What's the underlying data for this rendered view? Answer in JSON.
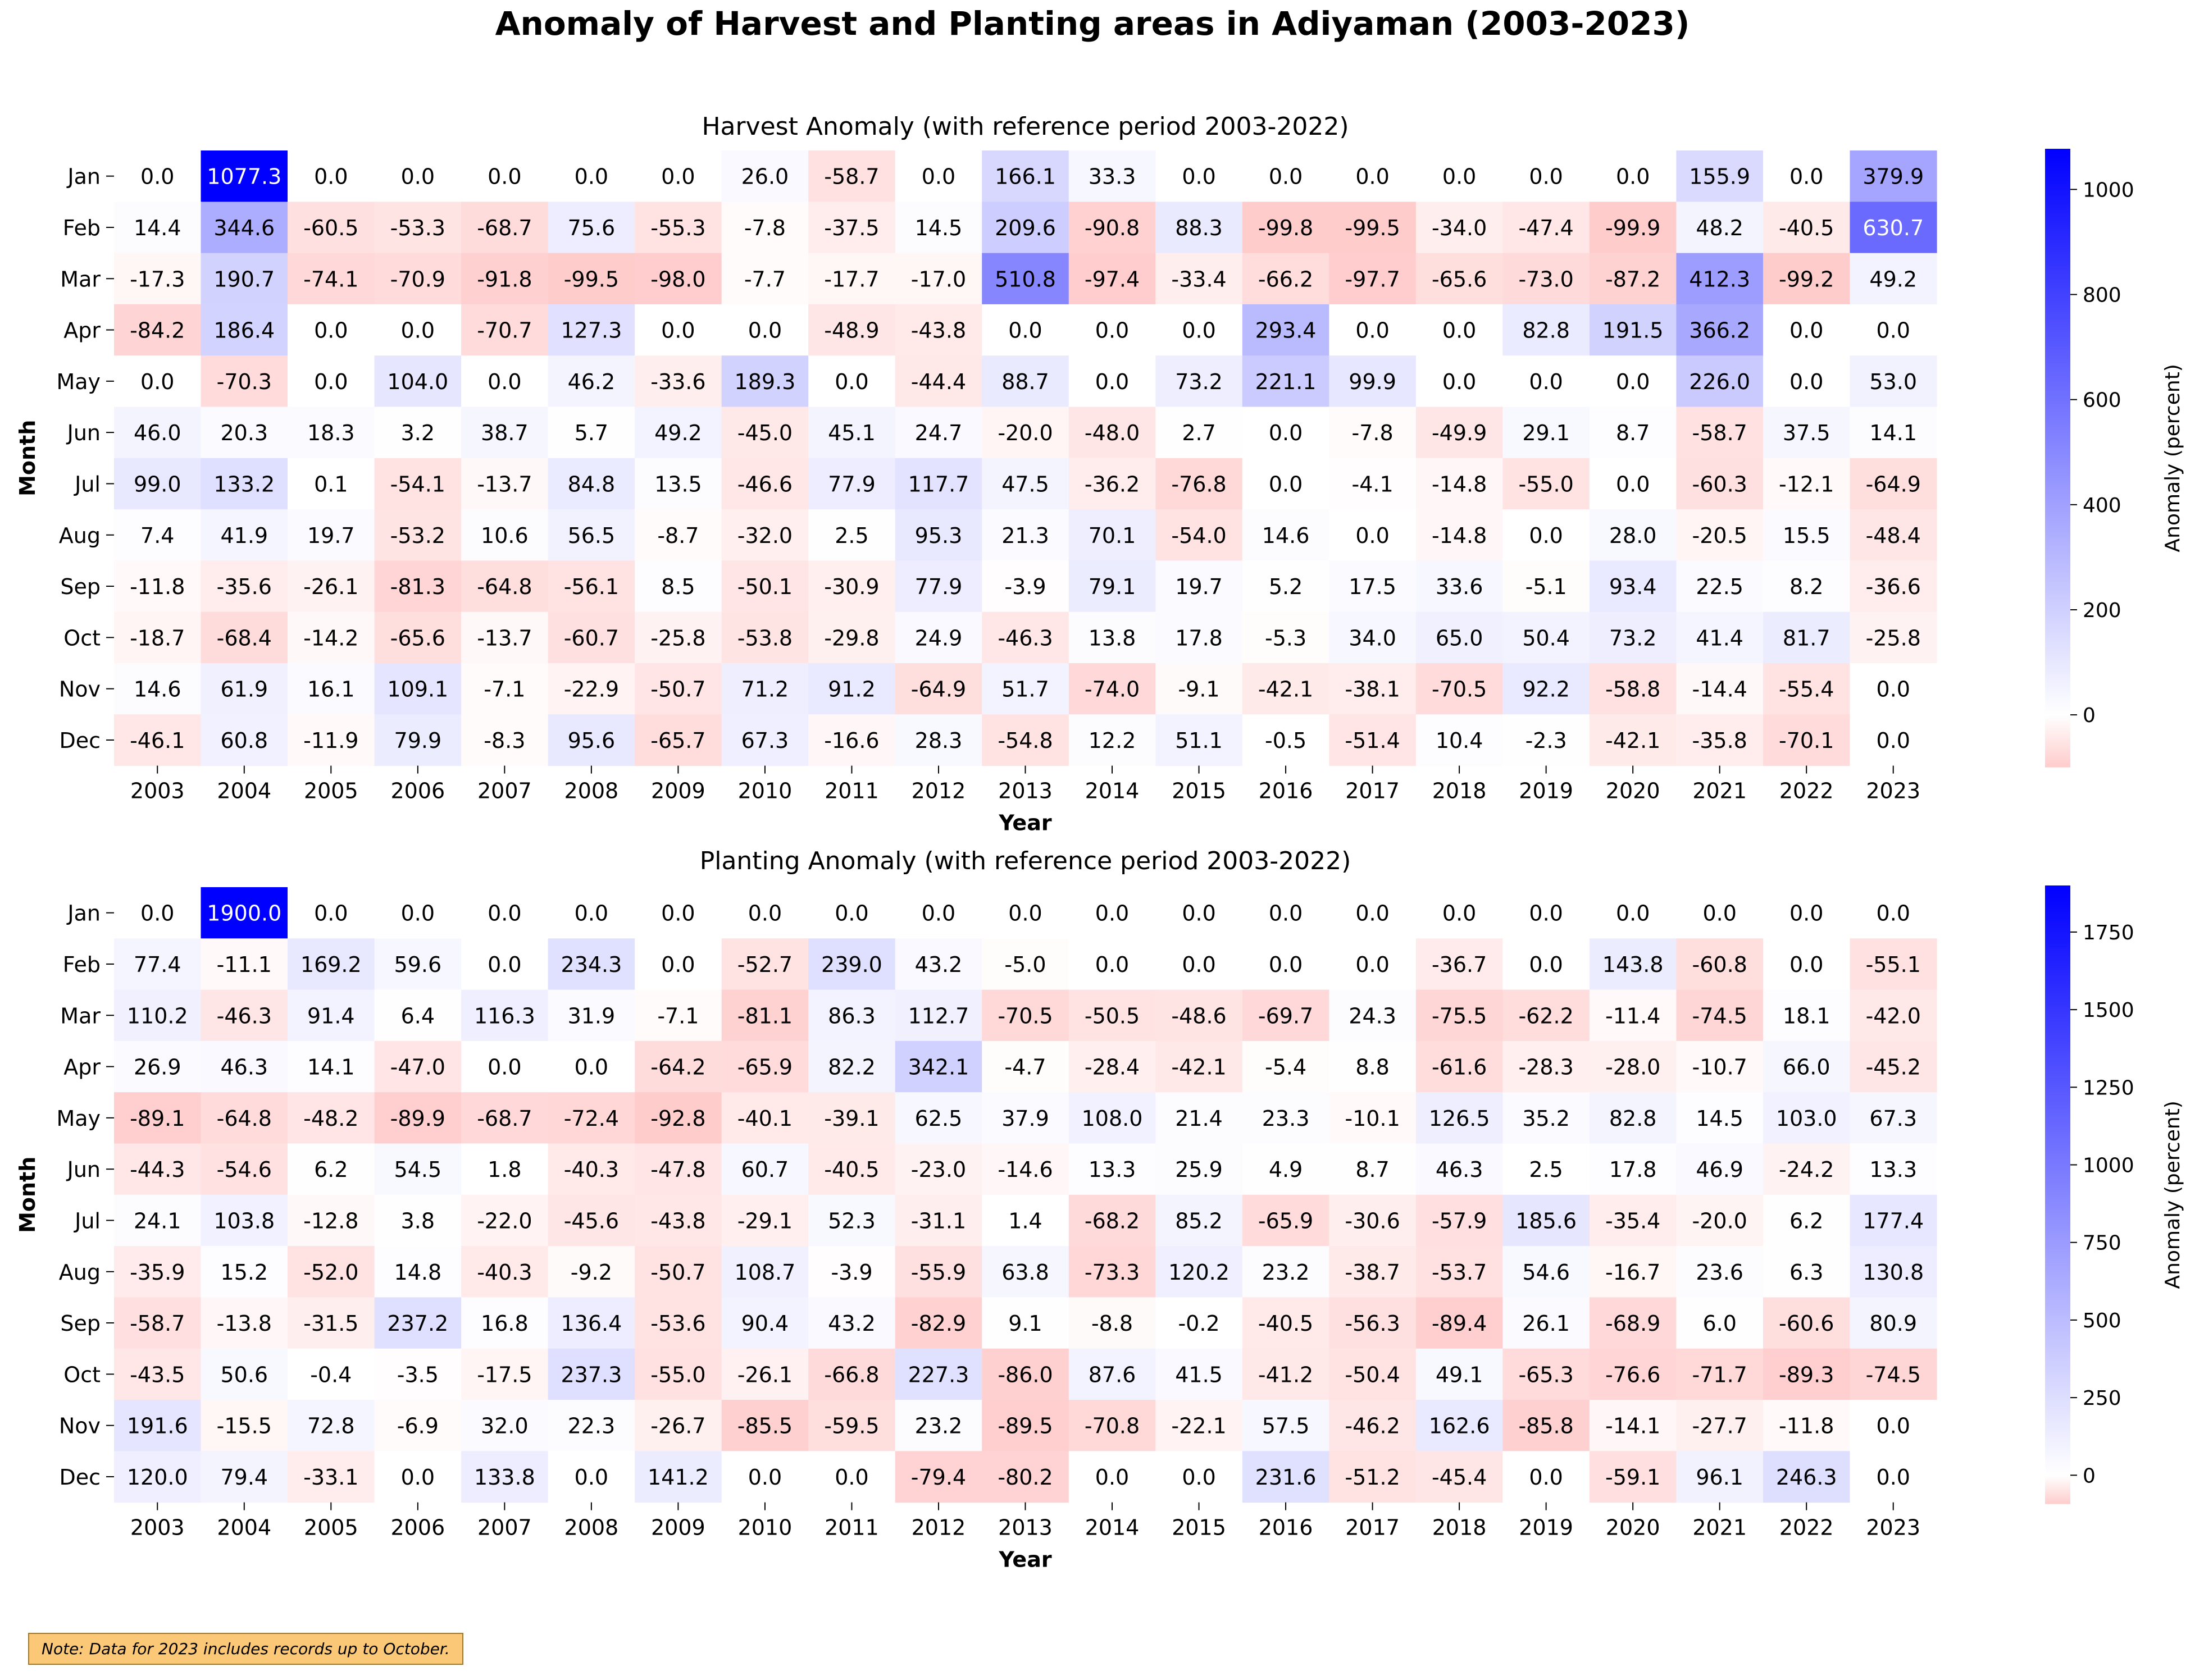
{
  "title": "Anomaly of Harvest and Planting areas in Adiyaman (2003-2023)",
  "note": "Note: Data for 2023 includes records up to October.",
  "colors": {
    "negative": "#ffcccc",
    "zero": "#ffffff",
    "positive": "#0000ff"
  },
  "chart_data": [
    {
      "type": "heatmap",
      "title": "Harvest Anomaly (with reference period 2003-2022)",
      "xlabel": "Year",
      "ylabel": "Month",
      "colorbar_label": "Anomaly (percent)",
      "colorbar_ticks": [
        0,
        200,
        400,
        600,
        800,
        1000
      ],
      "vmin": -99.9,
      "vmax": 1077.3,
      "x": [
        "2003",
        "2004",
        "2005",
        "2006",
        "2007",
        "2008",
        "2009",
        "2010",
        "2011",
        "2012",
        "2013",
        "2014",
        "2015",
        "2016",
        "2017",
        "2018",
        "2019",
        "2020",
        "2021",
        "2022",
        "2023"
      ],
      "y": [
        "Jan",
        "Feb",
        "Mar",
        "Apr",
        "May",
        "Jun",
        "Jul",
        "Aug",
        "Sep",
        "Oct",
        "Nov",
        "Dec"
      ],
      "values": [
        [
          "0.0",
          "1077.3",
          "0.0",
          "0.0",
          "0.0",
          "0.0",
          "0.0",
          "26.0",
          "-58.7",
          "0.0",
          "166.1",
          "33.3",
          "0.0",
          "0.0",
          "0.0",
          "0.0",
          "0.0",
          "0.0",
          "155.9",
          "0.0",
          "379.9"
        ],
        [
          "14.4",
          "344.6",
          "-60.5",
          "-53.3",
          "-68.7",
          "75.6",
          "-55.3",
          "-7.8",
          "-37.5",
          "14.5",
          "209.6",
          "-90.8",
          "88.3",
          "-99.8",
          "-99.5",
          "-34.0",
          "-47.4",
          "-99.9",
          "48.2",
          "-40.5",
          "630.7"
        ],
        [
          "-17.3",
          "190.7",
          "-74.1",
          "-70.9",
          "-91.8",
          "-99.5",
          "-98.0",
          "-7.7",
          "-17.7",
          "-17.0",
          "510.8",
          "-97.4",
          "-33.4",
          "-66.2",
          "-97.7",
          "-65.6",
          "-73.0",
          "-87.2",
          "412.3",
          "-99.2",
          "49.2"
        ],
        [
          "-84.2",
          "186.4",
          "0.0",
          "0.0",
          "-70.7",
          "127.3",
          "0.0",
          "0.0",
          "-48.9",
          "-43.8",
          "0.0",
          "0.0",
          "0.0",
          "293.4",
          "0.0",
          "0.0",
          "82.8",
          "191.5",
          "366.2",
          "0.0",
          "0.0"
        ],
        [
          "0.0",
          "-70.3",
          "0.0",
          "104.0",
          "0.0",
          "46.2",
          "-33.6",
          "189.3",
          "0.0",
          "-44.4",
          "88.7",
          "0.0",
          "73.2",
          "221.1",
          "99.9",
          "0.0",
          "0.0",
          "0.0",
          "226.0",
          "0.0",
          "53.0"
        ],
        [
          "46.0",
          "20.3",
          "18.3",
          "3.2",
          "38.7",
          "5.7",
          "49.2",
          "-45.0",
          "45.1",
          "24.7",
          "-20.0",
          "-48.0",
          "2.7",
          "0.0",
          "-7.8",
          "-49.9",
          "29.1",
          "8.7",
          "-58.7",
          "37.5",
          "14.1"
        ],
        [
          "99.0",
          "133.2",
          "0.1",
          "-54.1",
          "-13.7",
          "84.8",
          "13.5",
          "-46.6",
          "77.9",
          "117.7",
          "47.5",
          "-36.2",
          "-76.8",
          "0.0",
          "-4.1",
          "-14.8",
          "-55.0",
          "0.0",
          "-60.3",
          "-12.1",
          "-64.9"
        ],
        [
          "7.4",
          "41.9",
          "19.7",
          "-53.2",
          "10.6",
          "56.5",
          "-8.7",
          "-32.0",
          "2.5",
          "95.3",
          "21.3",
          "70.1",
          "-54.0",
          "14.6",
          "0.0",
          "-14.8",
          "0.0",
          "28.0",
          "-20.5",
          "15.5",
          "-48.4"
        ],
        [
          "-11.8",
          "-35.6",
          "-26.1",
          "-81.3",
          "-64.8",
          "-56.1",
          "8.5",
          "-50.1",
          "-30.9",
          "77.9",
          "-3.9",
          "79.1",
          "19.7",
          "5.2",
          "17.5",
          "33.6",
          "-5.1",
          "93.4",
          "22.5",
          "8.2",
          "-36.6"
        ],
        [
          "-18.7",
          "-68.4",
          "-14.2",
          "-65.6",
          "-13.7",
          "-60.7",
          "-25.8",
          "-53.8",
          "-29.8",
          "24.9",
          "-46.3",
          "13.8",
          "17.8",
          "-5.3",
          "34.0",
          "65.0",
          "50.4",
          "73.2",
          "41.4",
          "81.7",
          "-25.8"
        ],
        [
          "14.6",
          "61.9",
          "16.1",
          "109.1",
          "-7.1",
          "-22.9",
          "-50.7",
          "71.2",
          "91.2",
          "-64.9",
          "51.7",
          "-74.0",
          "-9.1",
          "-42.1",
          "-38.1",
          "-70.5",
          "92.2",
          "-58.8",
          "-14.4",
          "-55.4",
          "0.0"
        ],
        [
          "-46.1",
          "60.8",
          "-11.9",
          "79.9",
          "-8.3",
          "95.6",
          "-65.7",
          "67.3",
          "-16.6",
          "28.3",
          "-54.8",
          "12.2",
          "51.1",
          "-0.5",
          "-51.4",
          "10.4",
          "-2.3",
          "-42.1",
          "-35.8",
          "-70.1",
          "0.0"
        ]
      ]
    },
    {
      "type": "heatmap",
      "title": "Planting Anomaly (with reference period 2003-2022)",
      "xlabel": "Year",
      "ylabel": "Month",
      "colorbar_label": "Anomaly (percent)",
      "colorbar_ticks": [
        0,
        250,
        500,
        750,
        1000,
        1250,
        1500,
        1750
      ],
      "vmin": -92.8,
      "vmax": 1900.0,
      "x": [
        "2003",
        "2004",
        "2005",
        "2006",
        "2007",
        "2008",
        "2009",
        "2010",
        "2011",
        "2012",
        "2013",
        "2014",
        "2015",
        "2016",
        "2017",
        "2018",
        "2019",
        "2020",
        "2021",
        "2022",
        "2023"
      ],
      "y": [
        "Jan",
        "Feb",
        "Mar",
        "Apr",
        "May",
        "Jun",
        "Jul",
        "Aug",
        "Sep",
        "Oct",
        "Nov",
        "Dec"
      ],
      "values": [
        [
          "0.0",
          "1900.0",
          "0.0",
          "0.0",
          "0.0",
          "0.0",
          "0.0",
          "0.0",
          "0.0",
          "0.0",
          "0.0",
          "0.0",
          "0.0",
          "0.0",
          "0.0",
          "0.0",
          "0.0",
          "0.0",
          "0.0",
          "0.0",
          "0.0"
        ],
        [
          "77.4",
          "-11.1",
          "169.2",
          "59.6",
          "0.0",
          "234.3",
          "0.0",
          "-52.7",
          "239.0",
          "43.2",
          "-5.0",
          "0.0",
          "0.0",
          "0.0",
          "0.0",
          "-36.7",
          "0.0",
          "143.8",
          "-60.8",
          "0.0",
          "-55.1"
        ],
        [
          "110.2",
          "-46.3",
          "91.4",
          "6.4",
          "116.3",
          "31.9",
          "-7.1",
          "-81.1",
          "86.3",
          "112.7",
          "-70.5",
          "-50.5",
          "-48.6",
          "-69.7",
          "24.3",
          "-75.5",
          "-62.2",
          "-11.4",
          "-74.5",
          "18.1",
          "-42.0"
        ],
        [
          "26.9",
          "46.3",
          "14.1",
          "-47.0",
          "0.0",
          "0.0",
          "-64.2",
          "-65.9",
          "82.2",
          "342.1",
          "-4.7",
          "-28.4",
          "-42.1",
          "-5.4",
          "8.8",
          "-61.6",
          "-28.3",
          "-28.0",
          "-10.7",
          "66.0",
          "-45.2"
        ],
        [
          "-89.1",
          "-64.8",
          "-48.2",
          "-89.9",
          "-68.7",
          "-72.4",
          "-92.8",
          "-40.1",
          "-39.1",
          "62.5",
          "37.9",
          "108.0",
          "21.4",
          "23.3",
          "-10.1",
          "126.5",
          "35.2",
          "82.8",
          "14.5",
          "103.0",
          "67.3"
        ],
        [
          "-44.3",
          "-54.6",
          "6.2",
          "54.5",
          "1.8",
          "-40.3",
          "-47.8",
          "60.7",
          "-40.5",
          "-23.0",
          "-14.6",
          "13.3",
          "25.9",
          "4.9",
          "8.7",
          "46.3",
          "2.5",
          "17.8",
          "46.9",
          "-24.2",
          "13.3"
        ],
        [
          "24.1",
          "103.8",
          "-12.8",
          "3.8",
          "-22.0",
          "-45.6",
          "-43.8",
          "-29.1",
          "52.3",
          "-31.1",
          "1.4",
          "-68.2",
          "85.2",
          "-65.9",
          "-30.6",
          "-57.9",
          "185.6",
          "-35.4",
          "-20.0",
          "6.2",
          "177.4"
        ],
        [
          "-35.9",
          "15.2",
          "-52.0",
          "14.8",
          "-40.3",
          "-9.2",
          "-50.7",
          "108.7",
          "-3.9",
          "-55.9",
          "63.8",
          "-73.3",
          "120.2",
          "23.2",
          "-38.7",
          "-53.7",
          "54.6",
          "-16.7",
          "23.6",
          "6.3",
          "130.8"
        ],
        [
          "-58.7",
          "-13.8",
          "-31.5",
          "237.2",
          "16.8",
          "136.4",
          "-53.6",
          "90.4",
          "43.2",
          "-82.9",
          "9.1",
          "-8.8",
          "-0.2",
          "-40.5",
          "-56.3",
          "-89.4",
          "26.1",
          "-68.9",
          "6.0",
          "-60.6",
          "80.9"
        ],
        [
          "-43.5",
          "50.6",
          "-0.4",
          "-3.5",
          "-17.5",
          "237.3",
          "-55.0",
          "-26.1",
          "-66.8",
          "227.3",
          "-86.0",
          "87.6",
          "41.5",
          "-41.2",
          "-50.4",
          "49.1",
          "-65.3",
          "-76.6",
          "-71.7",
          "-89.3",
          "-74.5"
        ],
        [
          "191.6",
          "-15.5",
          "72.8",
          "-6.9",
          "32.0",
          "22.3",
          "-26.7",
          "-85.5",
          "-59.5",
          "23.2",
          "-89.5",
          "-70.8",
          "-22.1",
          "57.5",
          "-46.2",
          "162.6",
          "-85.8",
          "-14.1",
          "-27.7",
          "-11.8",
          "0.0"
        ],
        [
          "120.0",
          "79.4",
          "-33.1",
          "0.0",
          "133.8",
          "0.0",
          "141.2",
          "0.0",
          "0.0",
          "-79.4",
          "-80.2",
          "0.0",
          "0.0",
          "231.6",
          "-51.2",
          "-45.4",
          "0.0",
          "-59.1",
          "96.1",
          "246.3",
          "0.0"
        ]
      ]
    }
  ]
}
